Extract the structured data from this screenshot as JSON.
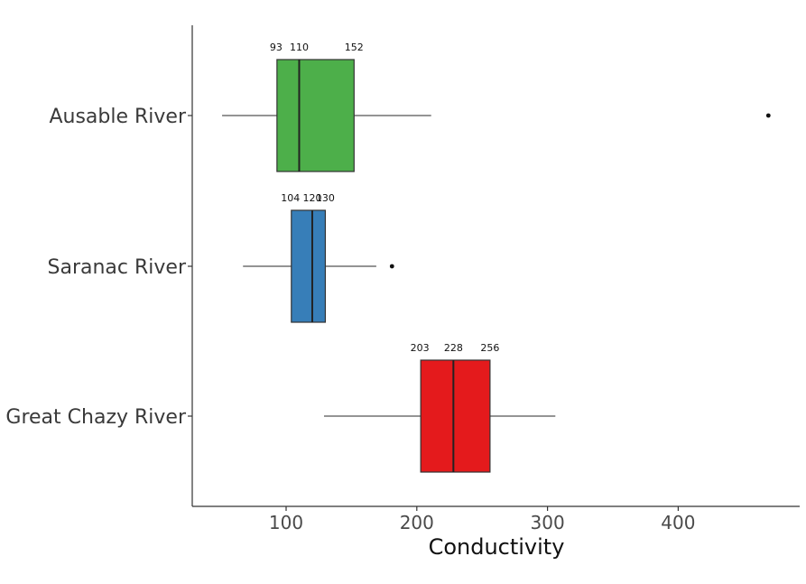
{
  "chart_data": {
    "type": "boxplot",
    "orientation": "horizontal",
    "title": "",
    "xlabel": "Conductivity",
    "ylabel": "",
    "xlim": [
      30,
      490
    ],
    "xticks": [
      100,
      200,
      300,
      400
    ],
    "grid": false,
    "legend": "none",
    "categories": [
      "Ausable River",
      "Saranac River",
      "Great Chazy River"
    ],
    "series": [
      {
        "category": "Ausable River",
        "color": "#4daf4a",
        "whisker_low": 51,
        "q1": 93,
        "median": 110,
        "q3": 152,
        "whisker_high": 211,
        "outliers": [
          469
        ],
        "labels": [
          "93",
          "110",
          "152"
        ]
      },
      {
        "category": "Saranac River",
        "color": "#377eb8",
        "whisker_low": 67,
        "q1": 104,
        "median": 120,
        "q3": 130,
        "whisker_high": 169,
        "outliers": [
          181
        ],
        "labels": [
          "104",
          "120",
          "130"
        ]
      },
      {
        "category": "Great Chazy River",
        "color": "#e41a1c",
        "whisker_low": 129,
        "q1": 203,
        "median": 228,
        "q3": 256,
        "whisker_high": 306,
        "outliers": [],
        "labels": [
          "203",
          "228",
          "256"
        ]
      }
    ]
  }
}
